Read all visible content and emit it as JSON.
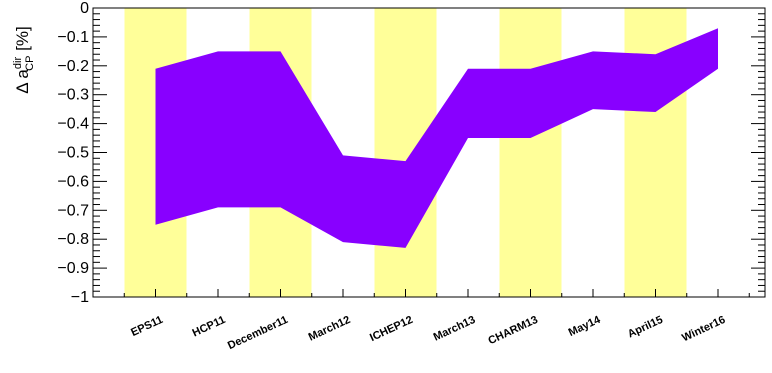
{
  "chart_data": {
    "type": "area",
    "ylabel": {
      "prefix": "Δ a",
      "superscript": "dir",
      "subscript": "CP",
      "suffix": " [%]"
    },
    "ylim": [
      -1,
      0
    ],
    "yticks": [
      "0",
      "−0.1",
      "−0.2",
      "−0.3",
      "−0.4",
      "−0.5",
      "−0.6",
      "−0.7",
      "−0.8",
      "−0.9",
      "−1"
    ],
    "categories": [
      "EPS11",
      "HCP11",
      "December11",
      "March12",
      "ICHEP12",
      "March13",
      "CHARM13",
      "May14",
      "April15",
      "Winter16"
    ],
    "band": {
      "upper": [
        -0.21,
        -0.15,
        -0.15,
        -0.51,
        -0.53,
        -0.21,
        -0.21,
        -0.15,
        -0.16,
        -0.07
      ],
      "lower": [
        -0.75,
        -0.69,
        -0.69,
        -0.81,
        -0.83,
        -0.45,
        -0.45,
        -0.35,
        -0.36,
        -0.21
      ]
    },
    "highlighted_categories": [
      "EPS11",
      "December11",
      "ICHEP12",
      "CHARM13",
      "April15"
    ],
    "colors": {
      "band": "#8800ff",
      "highlight": "#ffff99",
      "axis": "#000000"
    },
    "grid": false,
    "legend": "none"
  }
}
